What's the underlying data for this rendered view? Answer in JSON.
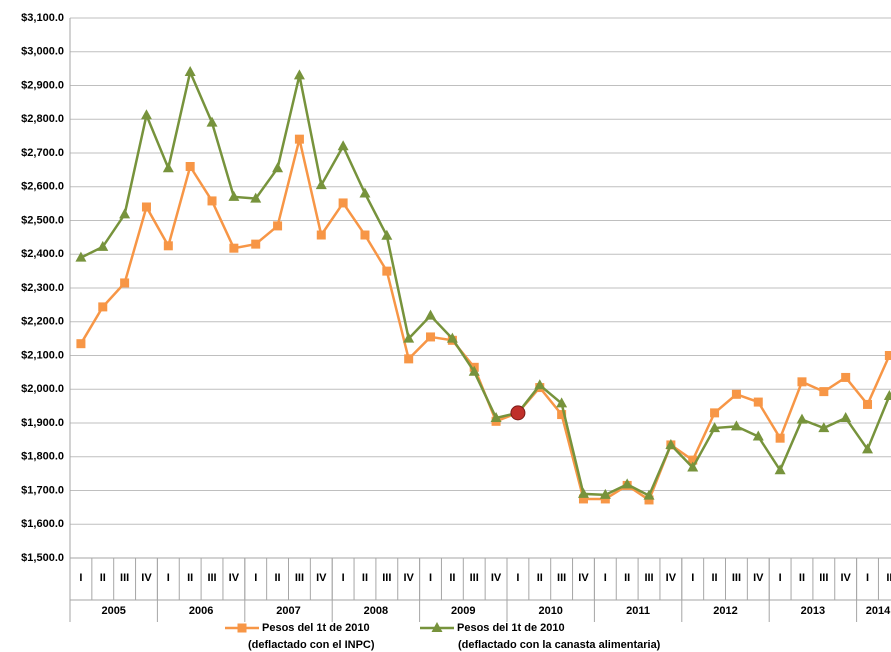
{
  "chart_data": {
    "type": "line",
    "groups": [
      {
        "name": "2005",
        "categories": [
          "I",
          "II",
          "III",
          "IV"
        ]
      },
      {
        "name": "2006",
        "categories": [
          "I",
          "II",
          "III",
          "IV"
        ]
      },
      {
        "name": "2007",
        "categories": [
          "I",
          "II",
          "III",
          "IV"
        ]
      },
      {
        "name": "2008",
        "categories": [
          "I",
          "II",
          "III",
          "IV"
        ]
      },
      {
        "name": "2009",
        "categories": [
          "I",
          "II",
          "III",
          "IV"
        ]
      },
      {
        "name": "2010",
        "categories": [
          "I",
          "II",
          "III",
          "IV"
        ]
      },
      {
        "name": "2011",
        "categories": [
          "I",
          "II",
          "III",
          "IV"
        ]
      },
      {
        "name": "2012",
        "categories": [
          "I",
          "II",
          "III",
          "IV"
        ]
      },
      {
        "name": "2013",
        "categories": [
          "I",
          "II",
          "III",
          "IV"
        ]
      },
      {
        "name": "2014",
        "categories": [
          "I",
          "II"
        ]
      }
    ],
    "series": [
      {
        "name": "Pesos del 1t de 2010",
        "subname": "(deflactado con el INPC)",
        "color": "#f79646",
        "marker": "square",
        "values": [
          2135,
          2244,
          2315,
          2540,
          2425,
          2660,
          2558,
          2418,
          2430,
          2484,
          2741,
          2457,
          2552,
          2457,
          2350,
          2090,
          2155,
          2145,
          2065,
          1905,
          1930,
          2005,
          1925,
          1675,
          1675,
          1715,
          1672,
          1835,
          1790,
          1930,
          1985,
          1962,
          1855,
          2022,
          1993,
          2035,
          1955,
          2100
        ]
      },
      {
        "name": "Pesos del 1t de 2010",
        "subname": "(deflactado con la canasta alimentaria)",
        "color": "#77933c",
        "marker": "triangle",
        "values": [
          2390,
          2422,
          2518,
          2812,
          2655,
          2940,
          2790,
          2570,
          2565,
          2655,
          2930,
          2605,
          2720,
          2580,
          2455,
          2150,
          2218,
          2150,
          2052,
          1915,
          1930,
          2012,
          1958,
          1690,
          1687,
          1718,
          1685,
          1835,
          1768,
          1885,
          1890,
          1860,
          1760,
          1910,
          1885,
          1915,
          1822,
          1980
        ]
      }
    ],
    "highlight_point": {
      "series": 0,
      "index": 20,
      "color": "#c0302a"
    },
    "ylim": [
      1500,
      3100
    ],
    "yticks": [
      {
        "value": 1500,
        "label": "$1,500.0"
      },
      {
        "value": 1600,
        "label": "$1,600.0"
      },
      {
        "value": 1700,
        "label": "$1,700.0"
      },
      {
        "value": 1800,
        "label": "$1,800.0"
      },
      {
        "value": 1900,
        "label": "$1,900.0"
      },
      {
        "value": 2000,
        "label": "$2,000.0"
      },
      {
        "value": 2100,
        "label": "$2,100.0"
      },
      {
        "value": 2200,
        "label": "$2,200.0"
      },
      {
        "value": 2300,
        "label": "$2,300.0"
      },
      {
        "value": 2400,
        "label": "$2,400.0"
      },
      {
        "value": 2500,
        "label": "$2,500.0"
      },
      {
        "value": 2600,
        "label": "$2,600.0"
      },
      {
        "value": 2700,
        "label": "$2,700.0"
      },
      {
        "value": 2800,
        "label": "$2,800.0"
      },
      {
        "value": 2900,
        "label": "$2,900.0"
      },
      {
        "value": 3000,
        "label": "$3,000.0"
      },
      {
        "value": 3100,
        "label": "$3,100.0"
      }
    ],
    "grid": true
  }
}
